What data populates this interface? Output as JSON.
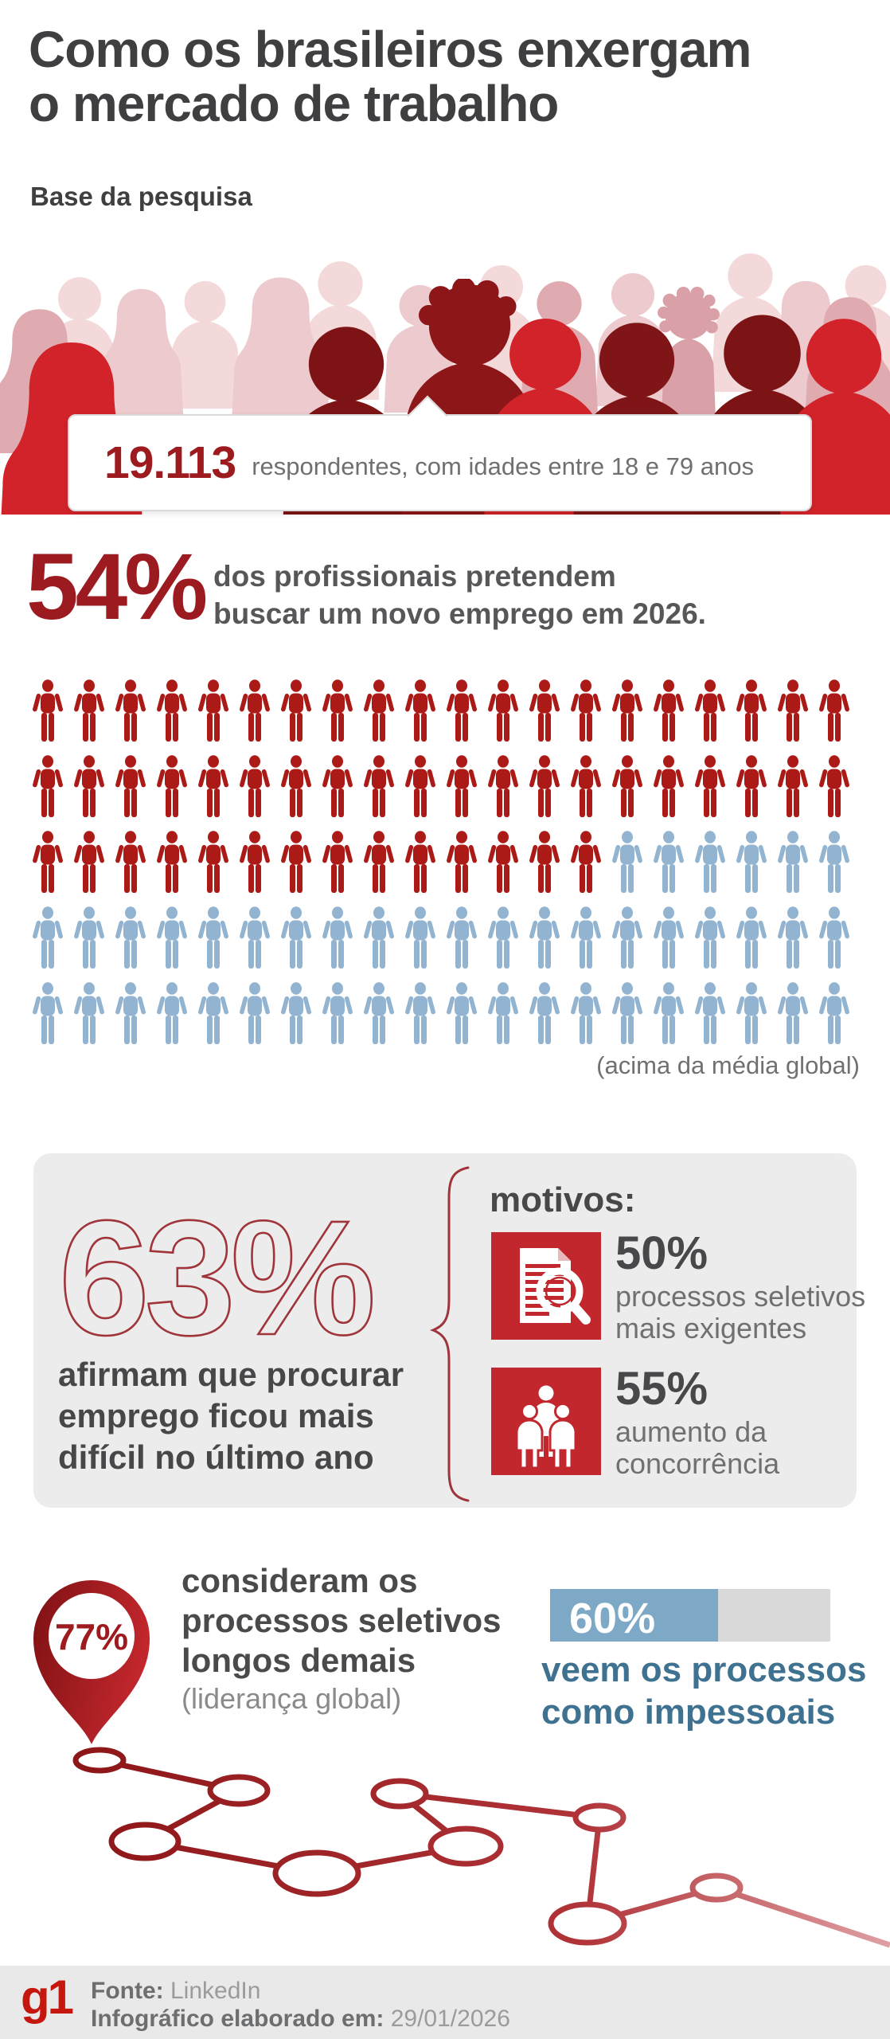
{
  "title": {
    "line1": "Como os brasileiros enxergam",
    "line2": "o mercado de trabalho"
  },
  "survey_base": {
    "label": "Base da pesquisa",
    "respondents_number": "19.113",
    "respondents_text": "respondentes, com idades entre 18 e 79 anos"
  },
  "job_seek": {
    "percent": "54%",
    "line1": "dos profissionais pretendem",
    "line2": "buscar um novo emprego em 2026.",
    "note": "(acima da média global)",
    "pictogram": {
      "total": 100,
      "per_row": 20,
      "highlighted": 54,
      "highlight_color": "#ab1a17",
      "rest_color": "#92b4d0"
    }
  },
  "difficulty": {
    "percent": "63%",
    "line1": "afirmam que procurar",
    "line2": "emprego ficou mais",
    "line3": "difícil no último ano",
    "reasons_title": "motivos:",
    "reasons": [
      {
        "percent": "50%",
        "line1": "processos seletivos",
        "line2": "mais exigentes",
        "icon": "document-search-icon"
      },
      {
        "percent": "55%",
        "line1": "aumento da",
        "line2": "concorrência",
        "icon": "people-group-icon"
      }
    ]
  },
  "long_processes": {
    "percent": "77%",
    "line1": "consideram os",
    "line2": "processos seletivos",
    "line3": "longos demais",
    "note": "(liderança global)"
  },
  "impersonal": {
    "percent": "60%",
    "value": 60,
    "line1": "veem os processos",
    "line2": "como impessoais",
    "bar_color": "#7ea9c6",
    "track_color": "#d9d9d9"
  },
  "footer": {
    "logo": "g1",
    "source_label": "Fonte:",
    "source_value": " LinkedIn",
    "date_label": "Infográfico elaborado em:",
    "date_value": " 29/01/2026"
  },
  "colors": {
    "accent_dark_red": "#9d1b1f",
    "accent_bright_red": "#c1272d",
    "accent_blue": "#7ea9c6",
    "text_dark": "#414042",
    "panel_gray": "#edecec"
  },
  "chart_data": [
    {
      "type": "pictogram",
      "title": "54% dos profissionais pretendem buscar um novo emprego em 2026.",
      "total": 100,
      "highlighted": 54,
      "rows": [
        20,
        20,
        14,
        0,
        0
      ],
      "note": "(acima da média global)",
      "highlight_color": "#ab1a17",
      "rest_color": "#92b4d0"
    },
    {
      "type": "bar",
      "categories": [
        "processos seletivos mais exigentes",
        "aumento da concorrência",
        "afirmam que procurar emprego ficou mais difícil",
        "consideram os processos seletivos longos demais",
        "veem os processos como impessoais"
      ],
      "values": [
        50,
        55,
        63,
        77,
        60
      ],
      "ylim": [
        0,
        100
      ],
      "title": "Como os brasileiros enxergam o mercado de trabalho"
    }
  ]
}
